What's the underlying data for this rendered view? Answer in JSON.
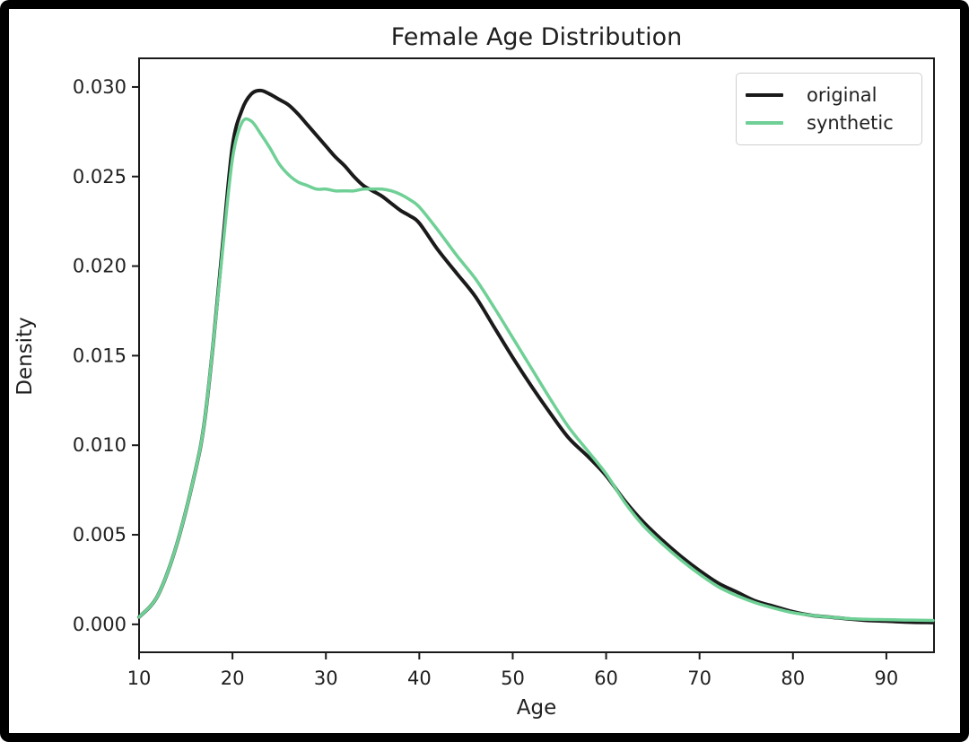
{
  "figure": {
    "title": "Female Age Distribution",
    "xlabel": "Age",
    "ylabel": "Density"
  },
  "legend": {
    "items": [
      {
        "label": "original",
        "color": "#1a1a1a"
      },
      {
        "label": "synthetic",
        "color": "#6fd096"
      }
    ]
  },
  "colors": {
    "original_line": "#1a1a1a",
    "synthetic_line": "#6fd096",
    "axes_spine": "#1a1a1a",
    "figure_background": "#ffffff",
    "frame_background": "#000000"
  },
  "chart_data": {
    "type": "line",
    "title": "Female Age Distribution",
    "xlabel": "Age",
    "ylabel": "Density",
    "xlim": [
      10,
      95.1
    ],
    "ylim": [
      -0.00156,
      0.0316
    ],
    "x_ticks": [
      10,
      20,
      30,
      40,
      50,
      60,
      70,
      80,
      90
    ],
    "y_ticks": [
      0.0,
      0.005,
      0.01,
      0.015,
      0.02,
      0.025,
      0.03
    ],
    "y_tick_decimals": 3,
    "grid": false,
    "legend_position": "upper right",
    "x": [
      10,
      12,
      14,
      16,
      17,
      18,
      19,
      20,
      21,
      22,
      23,
      24,
      25,
      26,
      27,
      28,
      29,
      30,
      31,
      32,
      33,
      34,
      35,
      36,
      37,
      38,
      39,
      40,
      42,
      44,
      46,
      48,
      50,
      52,
      54,
      56,
      58,
      60,
      62,
      64,
      66,
      68,
      70,
      72,
      74,
      76,
      78,
      80,
      82,
      84,
      86,
      88,
      90,
      92,
      95
    ],
    "series": [
      {
        "name": "original",
        "color": "#1a1a1a",
        "linewidth": 4,
        "values": [
          0.0004,
          0.0016,
          0.0044,
          0.0085,
          0.0113,
          0.016,
          0.0215,
          0.0267,
          0.0287,
          0.0296,
          0.0298,
          0.0296,
          0.0293,
          0.029,
          0.0285,
          0.0279,
          0.0273,
          0.0267,
          0.0261,
          0.0256,
          0.025,
          0.0245,
          0.0242,
          0.0239,
          0.0235,
          0.0231,
          0.0228,
          0.0224,
          0.0209,
          0.0196,
          0.0183,
          0.0166,
          0.0149,
          0.0133,
          0.0118,
          0.0104,
          0.0094,
          0.0083,
          0.0069,
          0.0057,
          0.0047,
          0.0038,
          0.003,
          0.0023,
          0.0018,
          0.0013,
          0.001,
          0.0007,
          0.0005,
          0.0004,
          0.0003,
          0.00022,
          0.00018,
          0.00013,
          0.0001
        ]
      },
      {
        "name": "synthetic",
        "color": "#6fd096",
        "linewidth": 3.5,
        "values": [
          0.0004,
          0.0016,
          0.0044,
          0.0085,
          0.0113,
          0.016,
          0.0212,
          0.026,
          0.028,
          0.0281,
          0.0274,
          0.0266,
          0.0257,
          0.0251,
          0.0247,
          0.0245,
          0.0243,
          0.0243,
          0.0242,
          0.0242,
          0.0242,
          0.0243,
          0.0243,
          0.0243,
          0.0242,
          0.024,
          0.0237,
          0.0233,
          0.022,
          0.0206,
          0.0193,
          0.0177,
          0.016,
          0.0143,
          0.0126,
          0.011,
          0.0097,
          0.0084,
          0.0068,
          0.0055,
          0.0045,
          0.0036,
          0.0028,
          0.0021,
          0.0016,
          0.0012,
          0.0009,
          0.00065,
          0.0005,
          0.0004,
          0.00032,
          0.00028,
          0.00026,
          0.00024,
          0.00022
        ]
      }
    ]
  }
}
